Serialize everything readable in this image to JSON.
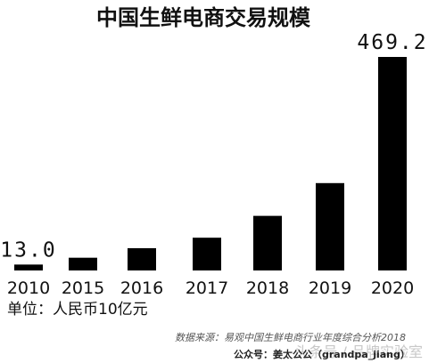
{
  "chart_data": {
    "type": "bar",
    "title": "中国生鲜电商交易规模",
    "categories": [
      "2010",
      "2015",
      "2016",
      "2017",
      "2018",
      "2019",
      "2020"
    ],
    "values": [
      13.0,
      28,
      49,
      72,
      120,
      192,
      469.2
    ],
    "data_labels": [
      "13.0",
      "",
      "",
      "",
      "",
      "",
      "469.2"
    ],
    "unit": "单位：人民币10亿元",
    "ylim": [
      0,
      480
    ],
    "grid": false,
    "bar_color": "#000000"
  },
  "source": "数据来源：易观中国生鲜电商行业年度综合分析2018",
  "account": "公众号：姜太公公（grandpa_jiang）",
  "watermark": "头条号 / 品牌实验室"
}
